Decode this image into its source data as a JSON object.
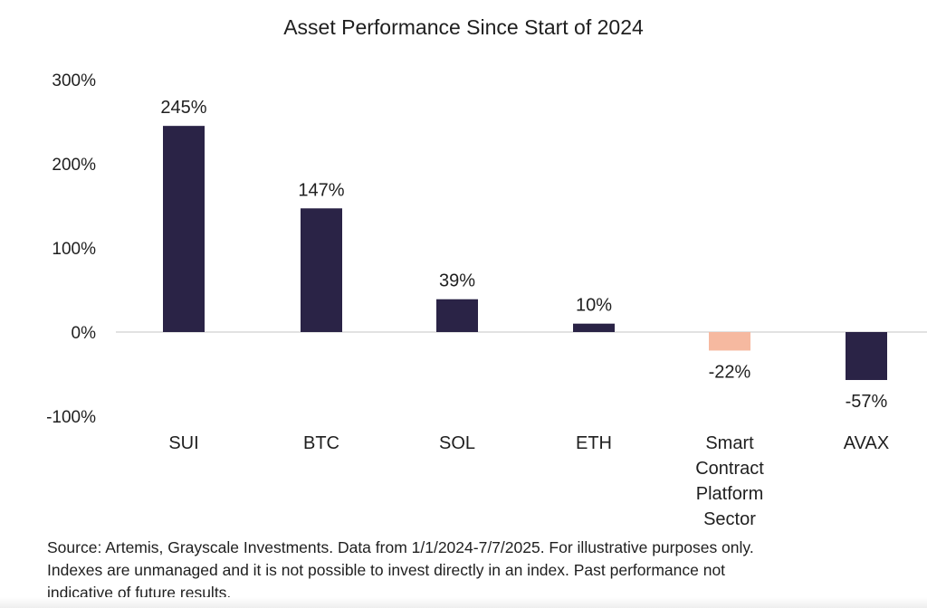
{
  "chart_data": {
    "type": "bar",
    "title": "Asset Performance Since Start of 2024",
    "categories": [
      [
        "SUI"
      ],
      [
        "BTC"
      ],
      [
        "SOL"
      ],
      [
        "ETH"
      ],
      [
        "Smart",
        "Contract",
        "Platform",
        "Sector"
      ],
      [
        "AVAX"
      ]
    ],
    "values": [
      245,
      147,
      39,
      10,
      -22,
      -57
    ],
    "data_labels": [
      "245%",
      "147%",
      "39%",
      "10%",
      "-22%",
      "-57%"
    ],
    "colors": [
      "#2a2346",
      "#2a2346",
      "#2a2346",
      "#2a2346",
      "#f6b9a0",
      "#2a2346"
    ],
    "ylim": [
      -100,
      300
    ],
    "yticks": [
      300,
      200,
      100,
      0,
      -100
    ],
    "ytick_labels": [
      "300%",
      "200%",
      "100%",
      "0%",
      "-100%"
    ],
    "grid": false,
    "legend": "none"
  },
  "footnote": [
    "Source: Artemis, Grayscale Investments. Data from 1/1/2024-7/7/2025. For illustrative purposes only.",
    "Indexes are unmanaged and it is not possible to invest directly in an index. Past performance not",
    "indicative of future results."
  ]
}
